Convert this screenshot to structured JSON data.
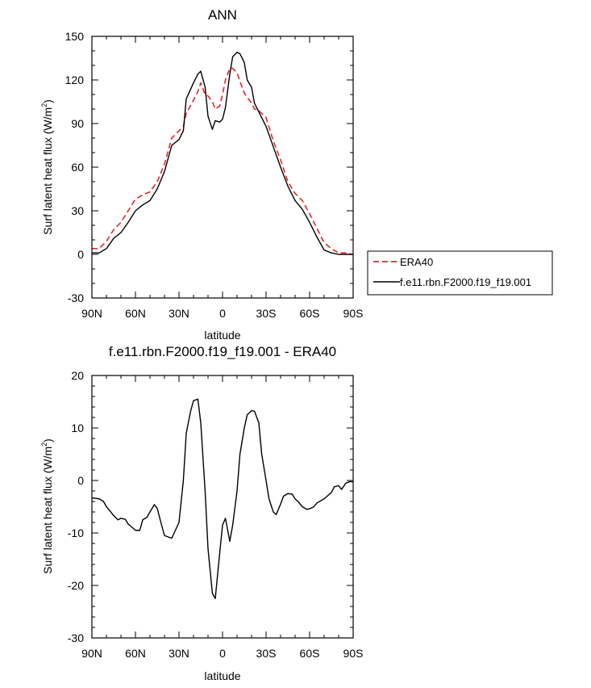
{
  "chart_data": [
    {
      "type": "line",
      "title": "ANN",
      "xlabel": "latitude",
      "ylabel": "Surf latent heat flux (W/m",
      "ylabel_sup": "2",
      "ylabel_close": ")",
      "xlim": [
        90,
        -90
      ],
      "ylim": [
        -30,
        150
      ],
      "x_ticks": [
        90,
        60,
        30,
        0,
        -30,
        -60,
        -90
      ],
      "x_tick_labels": [
        "90N",
        "60N",
        "30N",
        "0",
        "30S",
        "60S",
        "90S"
      ],
      "y_ticks": [
        -30,
        0,
        30,
        60,
        90,
        120,
        150
      ],
      "y_tick_labels": [
        "-30",
        "0",
        "30",
        "60",
        "90",
        "120",
        "150"
      ],
      "grid": false,
      "legend_position": "right-outside",
      "x": [
        90,
        85,
        80,
        75,
        70,
        65,
        60,
        55,
        50,
        45,
        40,
        35,
        30,
        27,
        25,
        20,
        17,
        15,
        12,
        10,
        7,
        5,
        2,
        0,
        -2,
        -5,
        -7,
        -10,
        -12,
        -15,
        -17,
        -20,
        -22,
        -25,
        -30,
        -35,
        -40,
        -45,
        -50,
        -55,
        -60,
        -65,
        -70,
        -75,
        -80,
        -85,
        -90
      ],
      "series": [
        {
          "name": "ERA40",
          "color": "#e8262a",
          "dash": "dashed",
          "values": [
            4,
            4,
            9,
            17,
            22,
            30,
            38,
            41,
            43,
            50,
            62,
            80,
            85,
            88,
            97,
            106,
            112,
            118,
            110,
            109,
            105,
            100,
            102,
            110,
            120,
            128,
            128,
            125,
            119,
            111,
            108,
            104,
            100,
            99,
            94,
            78,
            65,
            50,
            42,
            37,
            28,
            18,
            8,
            4,
            1,
            1,
            0
          ]
        },
        {
          "name": "f.e11.rbn.F2000.f19_f19.001",
          "color": "#000000",
          "dash": "solid",
          "values": [
            1,
            1,
            4,
            11,
            15,
            22,
            30,
            34,
            37,
            45,
            57,
            75,
            79,
            85,
            107,
            118,
            124,
            126,
            115,
            95,
            86,
            92,
            91,
            93,
            101,
            124,
            136,
            139,
            138,
            132,
            120,
            115,
            104,
            98,
            88,
            74,
            60,
            47,
            37,
            31,
            22,
            12,
            3,
            1,
            0,
            0,
            0
          ]
        }
      ]
    },
    {
      "type": "line",
      "title": "f.e11.rbn.F2000.f19_f19.001 - ERA40",
      "xlabel": "latitude",
      "ylabel": "Surf latent heat flux (W/m",
      "ylabel_sup": "2",
      "ylabel_close": ")",
      "xlim": [
        90,
        -90
      ],
      "ylim": [
        -30,
        20
      ],
      "x_ticks": [
        90,
        60,
        30,
        0,
        -30,
        -60,
        -90
      ],
      "x_tick_labels": [
        "90N",
        "60N",
        "30N",
        "0",
        "30S",
        "60S",
        "90S"
      ],
      "y_ticks": [
        -30,
        -20,
        -10,
        0,
        10,
        20
      ],
      "y_tick_labels": [
        "-30",
        "-20",
        "-10",
        "0",
        "10",
        "20"
      ],
      "grid": false,
      "x": [
        90,
        85,
        82,
        80,
        77,
        75,
        72,
        70,
        67,
        65,
        62,
        60,
        57,
        55,
        52,
        50,
        47,
        45,
        42,
        40,
        35,
        30,
        27,
        25,
        22,
        20,
        17,
        15,
        12,
        10,
        7,
        5,
        2,
        0,
        -2,
        -5,
        -7,
        -10,
        -12,
        -15,
        -17,
        -20,
        -22,
        -25,
        -27,
        -30,
        -32,
        -35,
        -37,
        -40,
        -42,
        -45,
        -48,
        -50,
        -52,
        -55,
        -58,
        -60,
        -63,
        -65,
        -70,
        -75,
        -77,
        -80,
        -82,
        -85,
        -87,
        -88,
        -90
      ],
      "series": [
        {
          "name": "",
          "color": "#000000",
          "dash": "solid",
          "values": [
            -3.3,
            -3.5,
            -4,
            -5,
            -6,
            -6.7,
            -7.5,
            -7.2,
            -7.4,
            -8.3,
            -9,
            -9.5,
            -9.5,
            -7.5,
            -7,
            -6,
            -4.6,
            -5.3,
            -8.5,
            -10.5,
            -11,
            -8,
            0,
            9,
            13.2,
            15.2,
            15.5,
            11,
            -2,
            -13,
            -21.5,
            -22.5,
            -14,
            -8.5,
            -7.2,
            -11.6,
            -8.5,
            -2,
            5,
            10,
            12.5,
            13.3,
            13.2,
            11,
            5,
            0,
            -3.5,
            -6,
            -6.5,
            -4.5,
            -3,
            -2.5,
            -2.6,
            -3.5,
            -4,
            -5,
            -5.5,
            -5.4,
            -5,
            -4.3,
            -3.5,
            -2.3,
            -1.2,
            -1,
            -1.7,
            -0.5,
            -0.3,
            -0.2,
            -0.3
          ]
        }
      ]
    }
  ]
}
